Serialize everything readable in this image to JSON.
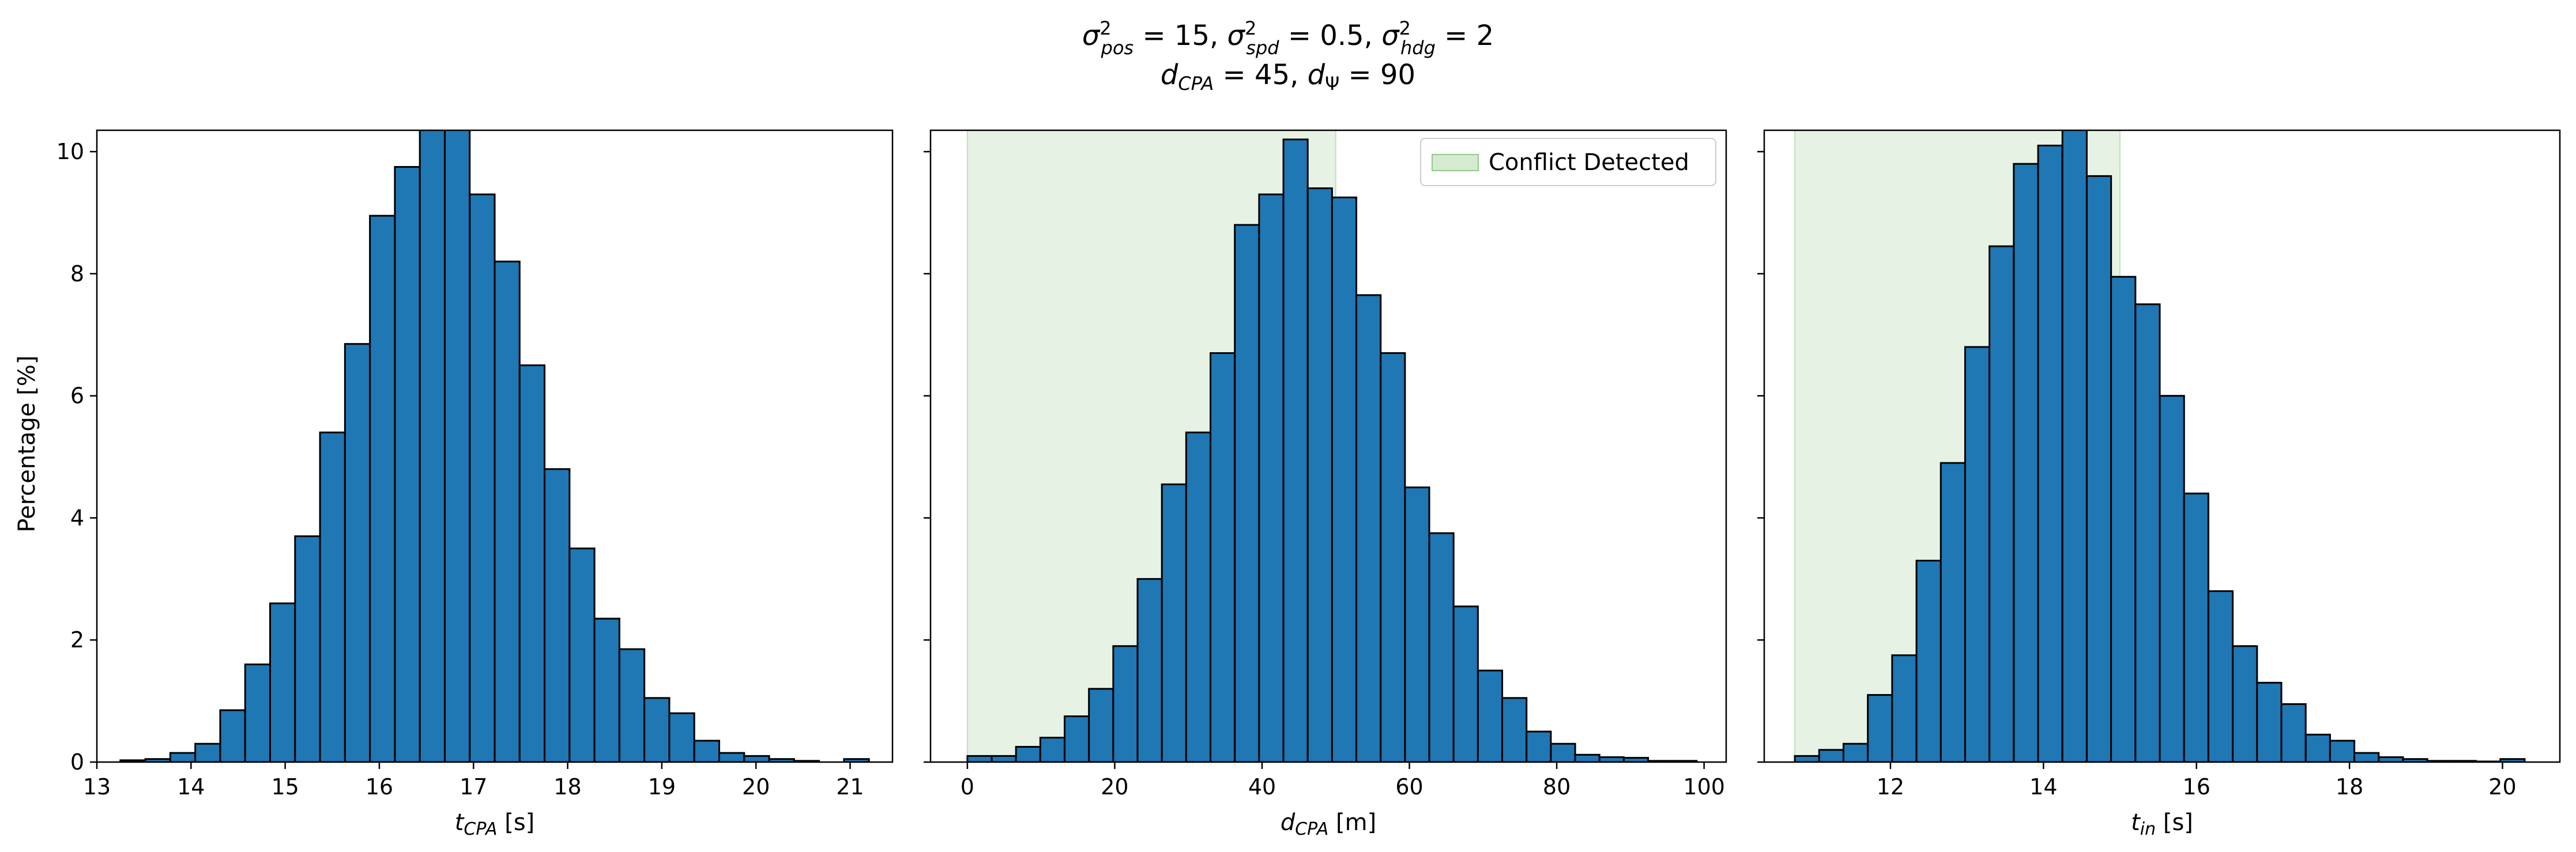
{
  "title": {
    "line1": "σ²pos = 15, σ²spd = 0.5, σ²hdg = 2",
    "line2": "dCPA = 45, dΨ = 90"
  },
  "shared_ylabel": "Percentage [%]",
  "colors": {
    "bar_fill": "#1f77b4",
    "bar_edge": "#000000",
    "conflict_fill": "#d6ead2",
    "conflict_edge": "#8fc98a"
  },
  "chart_data": [
    {
      "type": "bar",
      "xlabel": "tCPA [s]",
      "ylabel": "Percentage [%]",
      "xlim": [
        13.0,
        21.45
      ],
      "ylim": [
        0,
        10.35
      ],
      "xticks": [
        13,
        14,
        15,
        16,
        17,
        18,
        19,
        20,
        21
      ],
      "yticks": [
        0,
        2,
        4,
        6,
        8,
        10
      ],
      "bin_start": 13.25,
      "bin_width": 0.265,
      "values": [
        0.03,
        0.05,
        0.15,
        0.3,
        0.85,
        1.6,
        2.6,
        3.7,
        5.4,
        6.85,
        8.95,
        9.75,
        10.5,
        10.5,
        9.3,
        8.2,
        6.5,
        4.8,
        3.5,
        2.35,
        1.85,
        1.05,
        0.8,
        0.35,
        0.15,
        0.1,
        0.05,
        0.02,
        0.0,
        0.05
      ]
    },
    {
      "type": "bar",
      "xlabel": "dCPA [m]",
      "xlim": [
        -5,
        103
      ],
      "ylim": [
        0,
        10.35
      ],
      "xticks": [
        0,
        20,
        40,
        60,
        80,
        100
      ],
      "yticks": [
        0,
        2,
        4,
        6,
        8,
        10
      ],
      "bin_start": 0,
      "bin_width": 3.3,
      "values": [
        0.1,
        0.1,
        0.25,
        0.4,
        0.75,
        1.2,
        1.9,
        3.0,
        4.55,
        5.4,
        6.7,
        8.8,
        9.3,
        10.2,
        9.4,
        9.25,
        7.65,
        6.7,
        4.5,
        3.75,
        2.55,
        1.5,
        1.05,
        0.5,
        0.3,
        0.12,
        0.08,
        0.07,
        0.02,
        0.02
      ],
      "conflict_region": [
        0,
        50
      ],
      "legend": "Conflict Detected"
    },
    {
      "type": "bar",
      "xlabel": "tin [s]",
      "xlim": [
        10.35,
        20.75
      ],
      "ylim": [
        0,
        10.35
      ],
      "xticks": [
        12,
        14,
        16,
        18,
        20
      ],
      "yticks": [
        0,
        2,
        4,
        6,
        8,
        10
      ],
      "bin_start": 10.75,
      "bin_width": 0.318,
      "values": [
        0.1,
        0.2,
        0.3,
        1.1,
        1.75,
        3.3,
        4.9,
        6.8,
        8.45,
        9.8,
        10.1,
        10.4,
        9.6,
        7.95,
        7.5,
        6.0,
        4.4,
        2.8,
        1.9,
        1.3,
        0.95,
        0.45,
        0.35,
        0.15,
        0.08,
        0.05,
        0.02,
        0.02,
        0.01,
        0.05
      ],
      "conflict_region": [
        10.75,
        15.0
      ],
      "legend": null
    }
  ]
}
